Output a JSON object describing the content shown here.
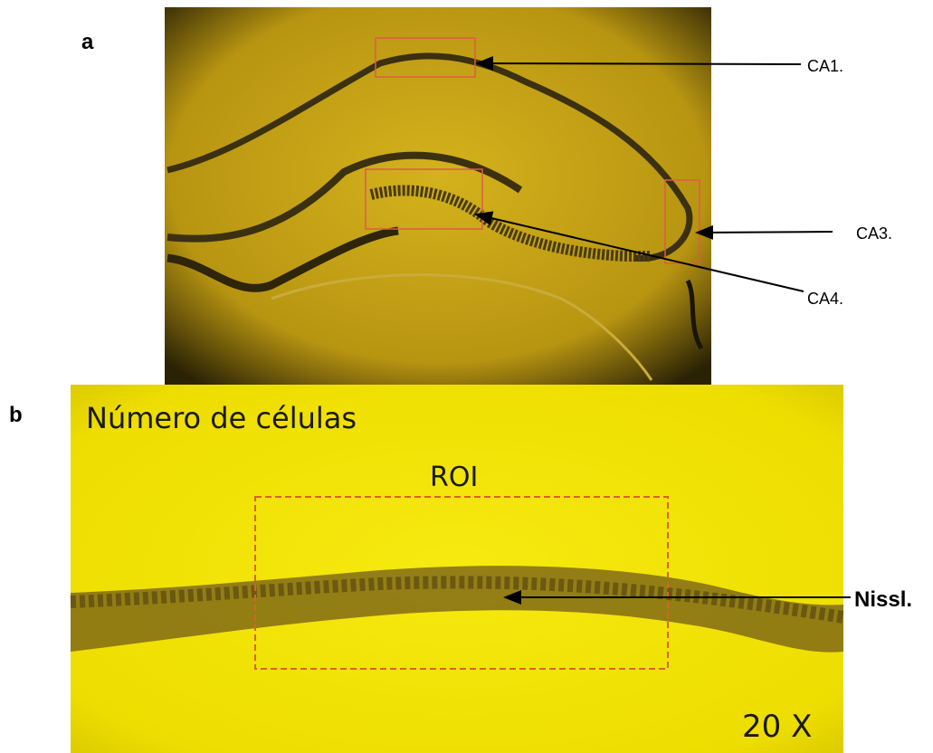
{
  "panels": [
    {
      "label": "a",
      "annotations": [
        "CA1.",
        "CA3.",
        "CA4."
      ]
    },
    {
      "label": "b",
      "title": "Número de células",
      "region": "ROI",
      "annotation": "Nissl.",
      "magnification": "20 X"
    }
  ]
}
